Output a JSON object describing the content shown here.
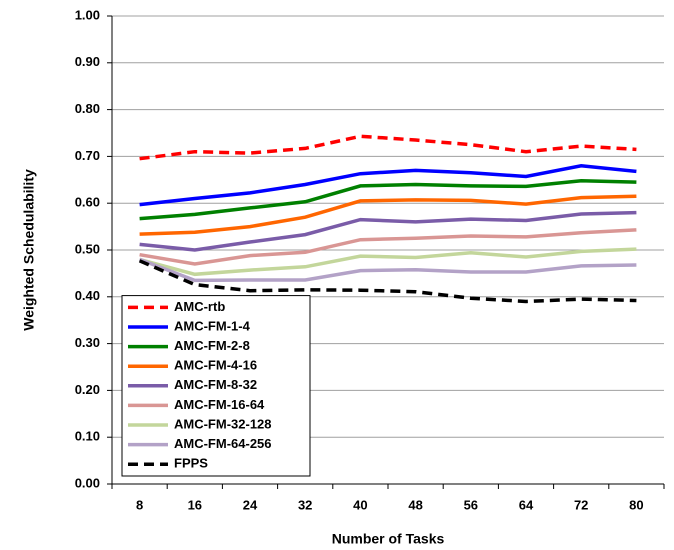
{
  "chart_data": {
    "type": "line",
    "x_label": "Number of Tasks",
    "y_label": "Weighted Schedulability",
    "categories": [
      "8",
      "16",
      "24",
      "32",
      "40",
      "48",
      "56",
      "64",
      "72",
      "80"
    ],
    "ylim": [
      0,
      1
    ],
    "yticks": [
      {
        "value": 0,
        "label": "0.00"
      },
      {
        "value": 0.1,
        "label": "0.10"
      },
      {
        "value": 0.2,
        "label": "0.20"
      },
      {
        "value": 0.3,
        "label": "0.30"
      },
      {
        "value": 0.4,
        "label": "0.40"
      },
      {
        "value": 0.5,
        "label": "0.50"
      },
      {
        "value": 0.6,
        "label": "0.60"
      },
      {
        "value": 0.7,
        "label": "0.70"
      },
      {
        "value": 0.8,
        "label": "0.80"
      },
      {
        "value": 0.9,
        "label": "0.90"
      },
      {
        "value": 1,
        "label": "1.00"
      }
    ],
    "grid": true,
    "legend": "lower left",
    "series": [
      {
        "name": "AMC-rtb",
        "color": "#ff0000",
        "dashed": true,
        "values": [
          0.695,
          0.71,
          0.707,
          0.717,
          0.743,
          0.735,
          0.725,
          0.71,
          0.722,
          0.715
        ]
      },
      {
        "name": "AMC-FM-1-4",
        "color": "#0000ff",
        "values": [
          0.597,
          0.61,
          0.622,
          0.64,
          0.663,
          0.67,
          0.665,
          0.657,
          0.68,
          0.668
        ]
      },
      {
        "name": "AMC-FM-2-8",
        "color": "#008000",
        "values": [
          0.567,
          0.576,
          0.59,
          0.603,
          0.637,
          0.64,
          0.637,
          0.636,
          0.648,
          0.645
        ]
      },
      {
        "name": "AMC-FM-4-16",
        "color": "#ff6600",
        "values": [
          0.534,
          0.538,
          0.55,
          0.57,
          0.605,
          0.607,
          0.606,
          0.598,
          0.612,
          0.615
        ]
      },
      {
        "name": "AMC-FM-8-32",
        "color": "#7a5ca8",
        "values": [
          0.512,
          0.5,
          0.517,
          0.533,
          0.565,
          0.56,
          0.566,
          0.563,
          0.577,
          0.58
        ]
      },
      {
        "name": "AMC-FM-16-64",
        "color": "#d99694",
        "values": [
          0.49,
          0.47,
          0.488,
          0.495,
          0.522,
          0.525,
          0.53,
          0.528,
          0.537,
          0.543
        ]
      },
      {
        "name": "AMC-FM-32-128",
        "color": "#c3d69b",
        "values": [
          0.48,
          0.448,
          0.457,
          0.464,
          0.487,
          0.484,
          0.494,
          0.485,
          0.497,
          0.502
        ]
      },
      {
        "name": "AMC-FM-64-256",
        "color": "#b3a2c7",
        "values": [
          0.48,
          0.435,
          0.436,
          0.436,
          0.456,
          0.458,
          0.453,
          0.453,
          0.466,
          0.468
        ]
      },
      {
        "name": "FPPS",
        "color": "#000000",
        "dashed": true,
        "values": [
          0.477,
          0.426,
          0.413,
          0.415,
          0.414,
          0.411,
          0.397,
          0.39,
          0.395,
          0.392
        ]
      }
    ]
  }
}
